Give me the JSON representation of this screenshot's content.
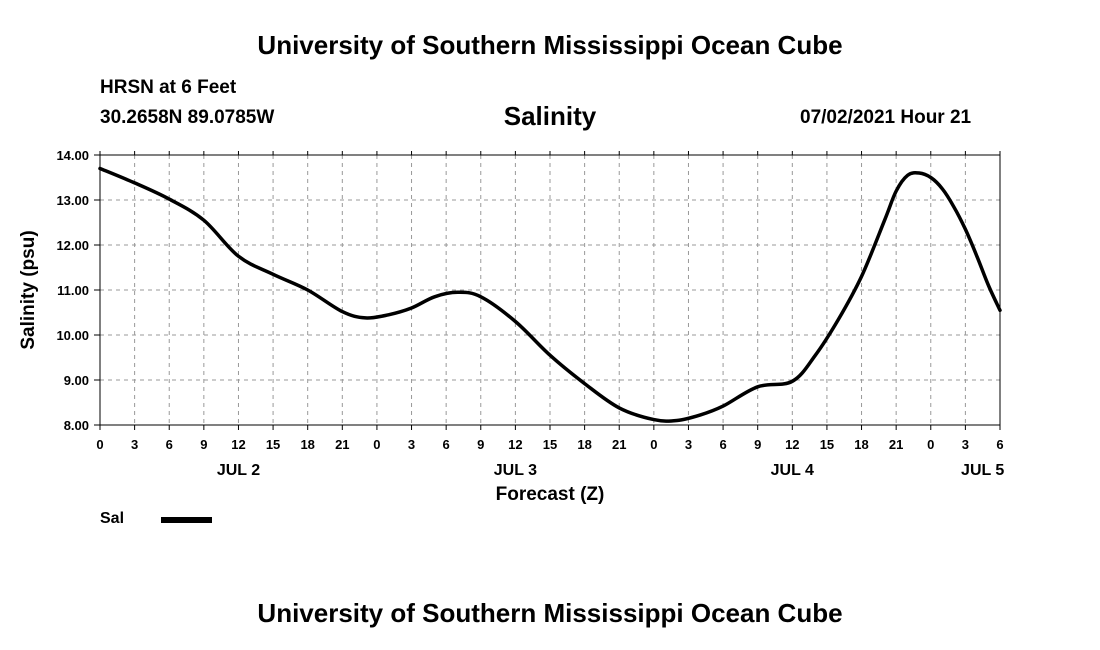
{
  "header": {
    "title": "University of Southern Mississippi Ocean Cube",
    "station": "HRSN at 6 Feet",
    "coords": "30.2658N  89.0785W",
    "datetime": "07/02/2021 Hour 21"
  },
  "footer": {
    "title": "University of Southern Mississippi Ocean Cube"
  },
  "chart_data": {
    "type": "line",
    "title": "Salinity",
    "xlabel": "Forecast (Z)",
    "ylabel": "Salinity (psu)",
    "ylim": [
      8.0,
      14.0
    ],
    "y_ticks": [
      "8.00",
      "9.00",
      "10.00",
      "11.00",
      "12.00",
      "13.00",
      "14.00"
    ],
    "x_unit": "forecast hour from JUL 2 00Z",
    "xlim": [
      0,
      78
    ],
    "x_tick_labels": [
      "0",
      "3",
      "6",
      "9",
      "12",
      "15",
      "18",
      "21",
      "0",
      "3",
      "6",
      "9",
      "12",
      "15",
      "18",
      "21",
      "0",
      "3",
      "6",
      "9",
      "12",
      "15",
      "18",
      "21",
      "0",
      "3",
      "6"
    ],
    "date_labels": [
      {
        "hour": 12,
        "label": "JUL 2"
      },
      {
        "hour": 36,
        "label": "JUL 3"
      },
      {
        "hour": 60,
        "label": "JUL 4"
      },
      {
        "hour": 76.5,
        "label": "JUL 5"
      }
    ],
    "grid": true,
    "series": [
      {
        "name": "Sal",
        "color": "#000000",
        "x": [
          0,
          3,
          6,
          9,
          12,
          15,
          18,
          21,
          23,
          25,
          27,
          29,
          31,
          33,
          36,
          39,
          42,
          45,
          48,
          50,
          52,
          54,
          57,
          60,
          62,
          64,
          66,
          68,
          69,
          70,
          71,
          72,
          73,
          74,
          75,
          76,
          77,
          78
        ],
        "values": [
          13.7,
          13.38,
          13.02,
          12.55,
          11.75,
          11.35,
          11.0,
          10.52,
          10.38,
          10.45,
          10.6,
          10.85,
          10.95,
          10.85,
          10.3,
          9.55,
          8.92,
          8.38,
          8.12,
          8.1,
          8.22,
          8.42,
          8.85,
          8.97,
          9.55,
          10.35,
          11.3,
          12.55,
          13.2,
          13.55,
          13.6,
          13.5,
          13.25,
          12.85,
          12.35,
          11.75,
          11.1,
          10.55
        ]
      }
    ]
  },
  "legend": {
    "label": "Sal"
  }
}
